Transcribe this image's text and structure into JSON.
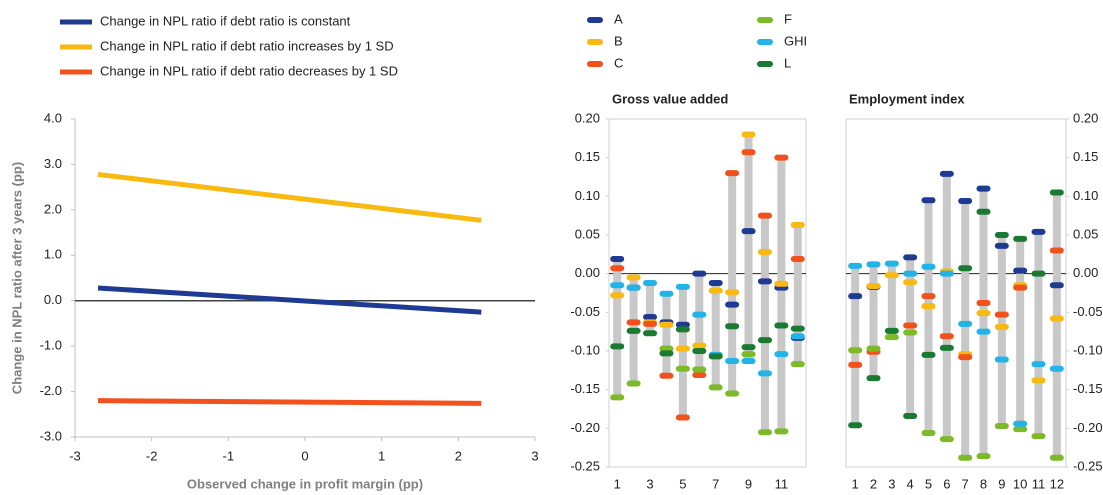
{
  "chart_data": [
    {
      "type": "line",
      "x": [
        -2.7,
        2.3
      ],
      "series": [
        {
          "name": "Change in NPL ratio if debt ratio is constant",
          "color": "#1f3a93",
          "values": [
            0.28,
            -0.25
          ]
        },
        {
          "name": "Change in NPL ratio if debt ratio increases by 1 SD",
          "color": "#f8b911",
          "values": [
            2.78,
            1.77
          ]
        },
        {
          "name": "Change in NPL ratio if debt ratio  decreases by 1 SD",
          "color": "#f2511b",
          "values": [
            -2.2,
            -2.26
          ]
        }
      ],
      "xlabel": "Observed change in profit margin (pp)",
      "ylabel": "Change in NPL ratio after 3 years (pp)",
      "xlim": [
        -3,
        3
      ],
      "xticks": [
        -3,
        -2,
        -1,
        0,
        1,
        2,
        3
      ],
      "ylim": [
        -3,
        4
      ],
      "yticks": [
        {
          "value": -3,
          "label": "-3.0"
        },
        {
          "value": -2,
          "label": "-2.0"
        },
        {
          "value": -1,
          "label": "-1.0"
        },
        {
          "value": 0,
          "label": "0.0"
        },
        {
          "value": 1,
          "label": "1.0"
        },
        {
          "value": 2,
          "label": "2.0"
        },
        {
          "value": 3,
          "label": "3.0"
        },
        {
          "value": 4,
          "label": "4.0"
        }
      ]
    },
    {
      "type": "range-dot",
      "title": "Gross value added",
      "legend": true,
      "y_axis_side": "left",
      "categories": [
        "1",
        null,
        "3",
        null,
        "5",
        null,
        "7",
        null,
        "9",
        null,
        "11",
        null
      ],
      "series": [
        {
          "name": "A",
          "color": "#1f3a93",
          "values": [
            0.019,
            -0.018,
            -0.056,
            -0.063,
            -0.066,
            0.0,
            -0.012,
            -0.04,
            0.055,
            -0.01,
            -0.018,
            -0.083
          ]
        },
        {
          "name": "B",
          "color": "#f8b911",
          "values": [
            -0.028,
            -0.005,
            -0.063,
            -0.066,
            -0.097,
            -0.093,
            -0.022,
            -0.024,
            0.18,
            0.028,
            -0.013,
            0.063
          ]
        },
        {
          "name": "C",
          "color": "#f2511b",
          "values": [
            0.007,
            -0.063,
            -0.065,
            -0.132,
            -0.186,
            -0.131,
            null,
            0.13,
            0.157,
            0.075,
            0.15,
            0.019
          ]
        },
        {
          "name": "F",
          "color": "#7dba27",
          "values": [
            -0.16,
            -0.142,
            null,
            -0.097,
            -0.123,
            -0.124,
            -0.147,
            -0.155,
            -0.104,
            -0.205,
            -0.204,
            -0.117
          ]
        },
        {
          "name": "GHI",
          "color": "#20b4e8",
          "values": [
            -0.015,
            -0.018,
            -0.012,
            -0.026,
            -0.017,
            -0.053,
            -0.105,
            -0.113,
            -0.113,
            -0.129,
            -0.104,
            -0.081
          ]
        },
        {
          "name": "L",
          "color": "#1a7a31",
          "values": [
            -0.094,
            -0.074,
            -0.077,
            -0.103,
            -0.072,
            -0.1,
            -0.107,
            -0.068,
            -0.095,
            -0.086,
            -0.067,
            -0.071
          ]
        }
      ],
      "ylim": [
        -0.25,
        0.2
      ],
      "yticks": [
        {
          "value": -0.25,
          "label": "-0.25"
        },
        {
          "value": -0.2,
          "label": "-0.20"
        },
        {
          "value": -0.15,
          "label": "-0.15"
        },
        {
          "value": -0.1,
          "label": "-0.10"
        },
        {
          "value": -0.05,
          "label": "-0.05"
        },
        {
          "value": 0,
          "label": "0.00"
        },
        {
          "value": 0.05,
          "label": "0.05"
        },
        {
          "value": 0.1,
          "label": "0.10"
        },
        {
          "value": 0.15,
          "label": "0.15"
        },
        {
          "value": 0.2,
          "label": "0.20"
        }
      ]
    },
    {
      "type": "range-dot",
      "title": "Employment index",
      "legend": false,
      "y_axis_side": "right",
      "categories": [
        "1",
        "2",
        "3",
        "4",
        "5",
        "6",
        "7",
        "8",
        "9",
        "10",
        "11",
        "12"
      ],
      "series": [
        {
          "name": "A",
          "color": "#1f3a93",
          "values": [
            -0.029,
            -0.017,
            null,
            0.021,
            0.095,
            0.129,
            0.094,
            0.11,
            0.036,
            0.004,
            0.054,
            -0.015
          ]
        },
        {
          "name": "B",
          "color": "#f8b911",
          "values": [
            null,
            -0.016,
            -0.002,
            -0.011,
            -0.042,
            0.003,
            -0.104,
            -0.051,
            -0.069,
            -0.015,
            -0.138,
            -0.058
          ]
        },
        {
          "name": "C",
          "color": "#f2511b",
          "values": [
            -0.118,
            -0.101,
            null,
            -0.067,
            -0.029,
            -0.081,
            -0.108,
            -0.038,
            -0.053,
            -0.018,
            null,
            0.03
          ]
        },
        {
          "name": "F",
          "color": "#7dba27",
          "values": [
            -0.099,
            -0.097,
            -0.082,
            -0.076,
            -0.206,
            -0.214,
            -0.238,
            -0.236,
            -0.197,
            -0.201,
            -0.21,
            -0.238
          ]
        },
        {
          "name": "GHI",
          "color": "#20b4e8",
          "values": [
            0.01,
            0.012,
            0.013,
            0.0,
            0.009,
            0.0,
            -0.065,
            -0.075,
            -0.111,
            -0.194,
            -0.117,
            -0.123
          ]
        },
        {
          "name": "L",
          "color": "#1a7a31",
          "values": [
            -0.196,
            -0.135,
            -0.074,
            -0.184,
            -0.105,
            -0.096,
            0.007,
            0.08,
            0.05,
            0.045,
            0.0,
            0.105
          ]
        }
      ],
      "ylim": [
        -0.25,
        0.2
      ],
      "yticks": [
        {
          "value": -0.25,
          "label": "-0.25"
        },
        {
          "value": -0.2,
          "label": "-0.20"
        },
        {
          "value": -0.15,
          "label": "-0.15"
        },
        {
          "value": -0.1,
          "label": "-0.10"
        },
        {
          "value": -0.05,
          "label": "-0.05"
        },
        {
          "value": 0,
          "label": "0.00"
        },
        {
          "value": 0.05,
          "label": "0.05"
        },
        {
          "value": 0.1,
          "label": "0.10"
        },
        {
          "value": 0.15,
          "label": "0.15"
        },
        {
          "value": 0.2,
          "label": "0.20"
        }
      ]
    }
  ]
}
